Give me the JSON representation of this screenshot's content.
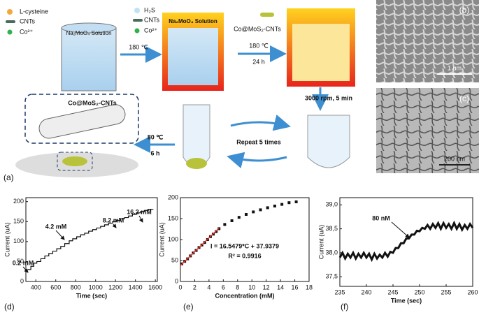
{
  "schematic": {
    "panel": "(a)",
    "legend_1": [
      "L-cysteine",
      "CNTs",
      "Co²⁺"
    ],
    "beaker_1": "Na₂MoO₄ Solution",
    "step_1": "180 ℃",
    "legend_2": [
      "H₂S",
      "CNTs",
      "Co²⁺"
    ],
    "beaker_2": "Na₂MoO₄ Solution",
    "product": "Co@MoS₂-CNTs",
    "step_2": [
      "180 ℃",
      "24 h"
    ],
    "step_3": "3000 rpm, 5 min",
    "step_4": "Repeat 5 times",
    "step_5": [
      "80 ℃",
      "6 h"
    ],
    "structure": "Co@MoS₂-CNTs"
  },
  "images": [
    {
      "panel": "(b)",
      "scale": "1 um"
    },
    {
      "panel": "(c)",
      "scale": "200 nm"
    }
  ],
  "chart_data": [
    {
      "type": "line",
      "panel": "(d)",
      "step": true,
      "xlabel": "Time (sec)",
      "ylabel": "Current (uA)",
      "xlim": [
        300,
        1620
      ],
      "ylim": [
        0,
        210
      ],
      "xticks": [
        400,
        600,
        800,
        1000,
        1200,
        1400,
        1600
      ],
      "yticks": [
        0,
        50,
        100,
        150,
        200
      ],
      "series": [
        {
          "color": "#111111",
          "x": [
            320,
            350,
            380,
            410,
            450,
            490,
            530,
            570,
            610,
            650,
            690,
            735,
            770,
            810,
            850,
            890,
            930,
            970,
            1010,
            1050,
            1090,
            1130,
            1170,
            1210,
            1250,
            1290,
            1330,
            1370,
            1410,
            1450,
            1490,
            1530,
            1580
          ],
          "values": [
            30,
            38,
            46,
            50,
            57,
            64,
            70,
            76,
            82,
            88,
            95,
            102,
            107,
            112,
            117,
            121,
            126,
            130,
            134,
            138,
            142,
            146,
            150,
            153,
            157,
            160,
            164,
            168,
            172,
            175,
            178,
            181,
            181
          ]
        }
      ],
      "annotations": [
        "0.2 mM",
        "4.2 mM",
        "8.2 mM",
        "16.2 mM"
      ]
    },
    {
      "type": "scatter",
      "panel": "(e)",
      "xlabel": "Concentration (mM)",
      "ylabel": "Current (uA)",
      "xlim": [
        0,
        18
      ],
      "ylim": [
        0,
        200
      ],
      "xticks": [
        0,
        2,
        4,
        6,
        8,
        10,
        12,
        14,
        16,
        18
      ],
      "yticks": [
        0,
        50,
        100,
        150,
        200
      ],
      "series": [
        {
          "mode": "markers",
          "color": "#111111",
          "x": [
            0.2,
            0.6,
            1.0,
            1.4,
            1.8,
            2.2,
            2.6,
            3.0,
            3.4,
            3.8,
            4.2,
            4.6,
            5.0,
            5.4,
            6.2,
            7.2,
            8.2,
            9.2,
            10.2,
            11.2,
            12.2,
            13.2,
            14.2,
            15.2,
            16.2
          ],
          "values": [
            42,
            48,
            54,
            61,
            68,
            74,
            81,
            87,
            93,
            100,
            107,
            113,
            119,
            126,
            136,
            145,
            153,
            160,
            166,
            171,
            176,
            180,
            184,
            188,
            190
          ]
        },
        {
          "mode": "line",
          "color": "#e8312a",
          "x": [
            0,
            5.4
          ],
          "values": [
            37.94,
            127.3
          ]
        }
      ],
      "annotations": [
        "I = 16.5479*C + 37.9379",
        "R² = 0.9916"
      ]
    },
    {
      "type": "line",
      "panel": "(f)",
      "xlabel": "Time (sec)",
      "ylabel": "Current (uA)",
      "xlim": [
        235,
        260
      ],
      "ylim": [
        37.3,
        39.15
      ],
      "xticks": [
        235,
        240,
        245,
        250,
        255,
        260
      ],
      "yticks": [
        {
          "value": 37.5,
          "label": "37,5"
        },
        {
          "value": 38,
          "label": "38,0"
        },
        {
          "value": 38.5,
          "label": "38,5"
        },
        {
          "value": 39,
          "label": "39,0"
        }
      ],
      "series": [
        {
          "color": "#111111",
          "x": [
            235,
            235.5,
            236,
            236.5,
            237,
            237.5,
            238,
            238.5,
            239,
            239.5,
            240,
            240.5,
            241,
            241.5,
            242,
            242.5,
            243,
            243.5,
            244,
            244.5,
            245,
            245.5,
            246,
            246.5,
            247,
            247.5,
            248,
            248.5,
            249,
            249.5,
            250,
            250.5,
            251,
            251.5,
            252,
            252.5,
            253,
            253.5,
            254,
            254.5,
            255,
            255.5,
            256,
            256.5,
            257,
            257.5,
            258,
            258.5,
            259,
            259.5,
            260
          ],
          "values": [
            37.9,
            38.0,
            37.88,
            37.98,
            37.9,
            38.0,
            37.88,
            37.98,
            37.9,
            38.0,
            37.9,
            37.98,
            37.86,
            37.98,
            37.88,
            37.96,
            37.9,
            38.0,
            37.92,
            38.02,
            38.0,
            38.1,
            38.1,
            38.2,
            38.2,
            38.3,
            38.3,
            38.38,
            38.38,
            38.46,
            38.45,
            38.52,
            38.5,
            38.58,
            38.5,
            38.6,
            38.52,
            38.62,
            38.5,
            38.62,
            38.52,
            38.6,
            38.5,
            38.62,
            38.5,
            38.6,
            38.48,
            38.58,
            38.5,
            38.6,
            38.52
          ]
        }
      ],
      "annotations": [
        "80 nM"
      ]
    }
  ]
}
